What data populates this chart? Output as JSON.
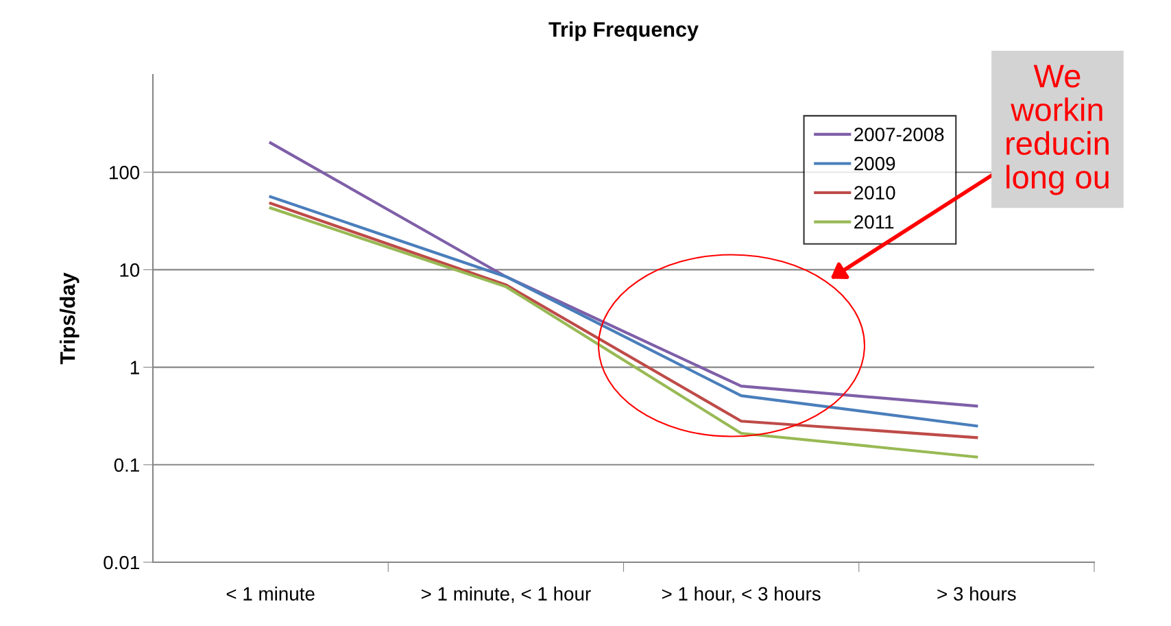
{
  "chart_data": {
    "type": "line",
    "title": "Trip Frequency",
    "ylabel": "Trips/day",
    "categories": [
      "< 1 minute",
      "> 1 minute, < 1 hour",
      "> 1 hour, < 3 hours",
      "> 3 hours"
    ],
    "series": [
      {
        "name": "2007-2008",
        "color": "#7f5fa8",
        "values": [
          200,
          8.5,
          0.64,
          0.4
        ]
      },
      {
        "name": "2009",
        "color": "#4a7ebb",
        "values": [
          56,
          8.5,
          0.51,
          0.25
        ]
      },
      {
        "name": "2010",
        "color": "#be4b48",
        "values": [
          48,
          7,
          0.28,
          0.19
        ]
      },
      {
        "name": "2011",
        "color": "#98b954",
        "values": [
          43,
          6.7,
          0.21,
          0.12
        ]
      }
    ],
    "log": "y",
    "ylim": [
      0.01,
      1000
    ],
    "yticks": [
      0.01,
      0.1,
      1,
      10,
      100
    ],
    "grid": "y",
    "legend": "top right",
    "marker": "none",
    "line_style": "solid",
    "annotations": [
      "We\nworkin\nreducin\nlong ou"
    ]
  }
}
